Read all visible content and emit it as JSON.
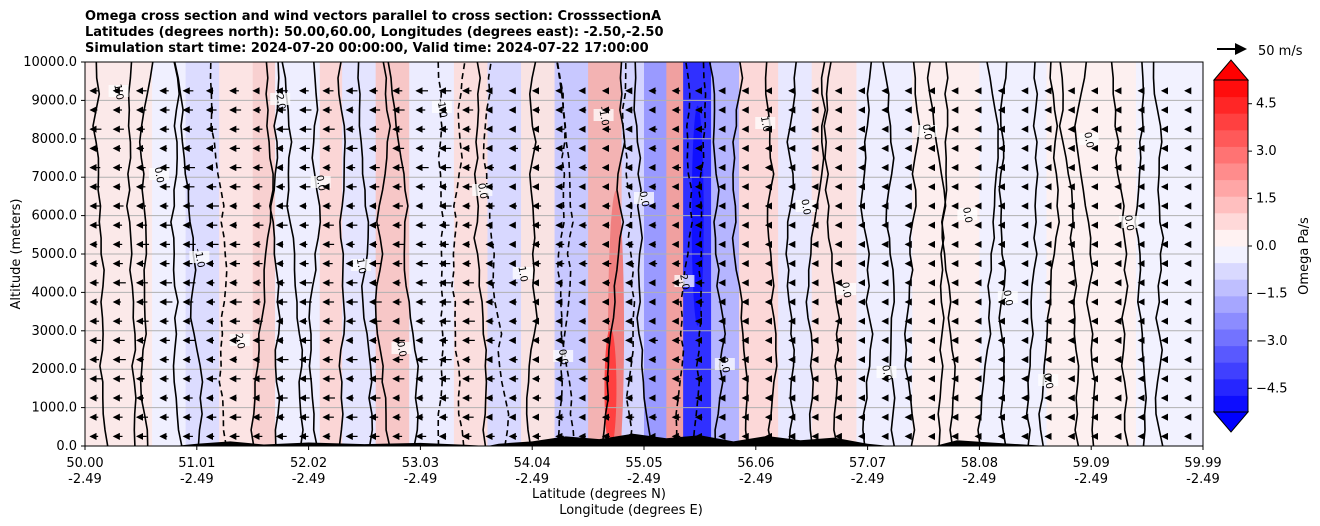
{
  "chart_data": {
    "type": "contour",
    "title_lines": [
      "Omega cross section and wind vectors parallel to cross section: CrosssectionA",
      "Latitudes (degrees north): 50.00,60.00, Longitudes (degrees east): -2.50,-2.50",
      "Simulation start time: 2024-07-20 00:00:00, Valid time: 2024-07-22 17:00:00"
    ],
    "ylabel": "Altitude (meters)",
    "xlabel_1": "Latitude (degrees N)",
    "xlabel_2": "Longitude (degrees E)",
    "ylim": [
      0,
      10000
    ],
    "xlim": [
      50.0,
      59.99
    ],
    "yticks": [
      "0.0",
      "1000.0",
      "2000.0",
      "3000.0",
      "4000.0",
      "5000.0",
      "6000.0",
      "7000.0",
      "8000.0",
      "9000.0",
      "10000.0"
    ],
    "xticks": [
      {
        "lat": "50.00",
        "lon": "-2.49"
      },
      {
        "lat": "51.01",
        "lon": "-2.49"
      },
      {
        "lat": "52.02",
        "lon": "-2.49"
      },
      {
        "lat": "53.03",
        "lon": "-2.49"
      },
      {
        "lat": "54.04",
        "lon": "-2.49"
      },
      {
        "lat": "55.05",
        "lon": "-2.49"
      },
      {
        "lat": "56.06",
        "lon": "-2.49"
      },
      {
        "lat": "57.07",
        "lon": "-2.49"
      },
      {
        "lat": "58.08",
        "lon": "-2.49"
      },
      {
        "lat": "59.09",
        "lon": "-2.49"
      },
      {
        "lat": "59.99",
        "lon": "-2.49"
      }
    ],
    "colorbar": {
      "label": "Omega Pa/s",
      "range": [
        -5.25,
        5.25
      ],
      "ticks": [
        "4.5",
        "3.0",
        "1.5",
        "0.0",
        "−1.5",
        "−3.0",
        "−4.5"
      ],
      "low_color": "#0000ff",
      "high_color": "#ff0000"
    },
    "vector_key": "50 m/s",
    "contour_labels": [
      "1.0",
      "0.0",
      "-1.0",
      "2.0",
      "-2.0",
      "0.0",
      "1.0",
      "0.0",
      "-1.0",
      "0.0",
      "1.0",
      "0.0",
      "-1.0",
      "0.0",
      "2.0",
      "0.0",
      "1.0",
      "0.0",
      "0.0",
      "0.0",
      "0.0",
      "0.0",
      "0.0",
      "0.0",
      "0.0",
      "0.0"
    ],
    "grid": true
  }
}
